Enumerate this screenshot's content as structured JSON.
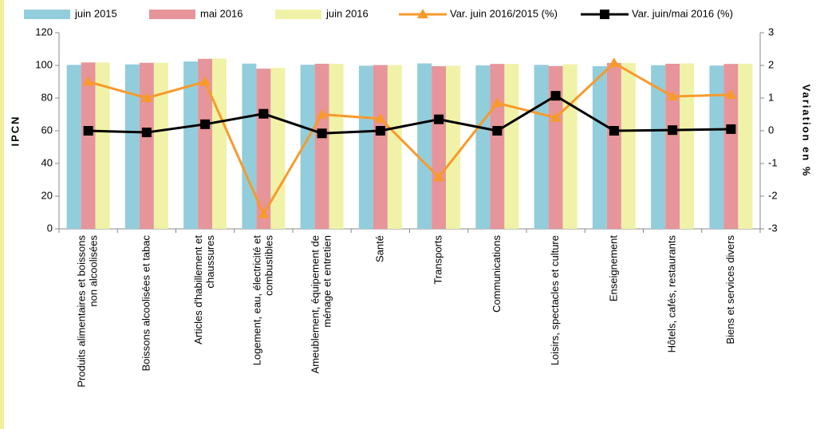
{
  "chart_data": {
    "type": "bar",
    "categories": [
      [
        "Produits alimentaires et boissons",
        "non alcoolisées"
      ],
      [
        "Boissons alcoolisées et tabac"
      ],
      [
        "Articles d'habillement et",
        "chaussures"
      ],
      [
        "Logement, eau, électricité et",
        "combustibles"
      ],
      [
        "Ameublement, équipement de",
        "ménage et entretien"
      ],
      [
        "Santé"
      ],
      [
        "Transports"
      ],
      [
        "Communications"
      ],
      [
        "Loisirs, spectacles et culture"
      ],
      [
        "Enseignement"
      ],
      [
        "Hôtels, cafés, restaurants"
      ],
      [
        "Biens et services divers"
      ]
    ],
    "series": [
      {
        "name": "juin 2015",
        "color": "#92cddc",
        "values": [
          100.3,
          100.6,
          102.4,
          101.1,
          100.4,
          99.8,
          101.2,
          100.0,
          100.3,
          99.5,
          100.1,
          99.9
        ]
      },
      {
        "name": "mai 2016",
        "color": "#e6959b",
        "values": [
          101.8,
          101.6,
          104.0,
          98.0,
          101.0,
          100.2,
          99.5,
          100.9,
          99.6,
          101.5,
          101.0,
          100.9
        ]
      },
      {
        "name": "juin 2016",
        "color": "#f0f2a8",
        "values": [
          101.8,
          101.6,
          104.2,
          98.5,
          100.9,
          100.2,
          99.8,
          100.9,
          100.7,
          101.5,
          101.2,
          101.0
        ]
      },
      {
        "name": "Var. juin 2016/2015 (%)",
        "color": "#f79a2c",
        "type": "line",
        "marker": "triangle",
        "axis": "y2",
        "values": [
          1.5,
          1.0,
          1.5,
          -2.55,
          0.5,
          0.37,
          -1.42,
          0.85,
          0.4,
          2.07,
          1.05,
          1.1
        ]
      },
      {
        "name": "Var. juin/mai 2016 (%)",
        "color": "#000000",
        "type": "line",
        "marker": "square",
        "axis": "y2",
        "values": [
          0.0,
          -0.05,
          0.2,
          0.52,
          -0.08,
          0.0,
          0.35,
          0.0,
          1.07,
          0.0,
          0.02,
          0.05
        ]
      }
    ],
    "ylabel": "IPCN",
    "y2label": "Variation en %",
    "ylim": [
      0,
      120
    ],
    "yticks": [
      0,
      20,
      40,
      60,
      80,
      100,
      120
    ],
    "y2lim": [
      -3,
      3
    ],
    "y2ticks": [
      -3,
      -2,
      -1,
      0,
      1,
      2,
      3
    ],
    "grid": false,
    "legend": "top"
  }
}
